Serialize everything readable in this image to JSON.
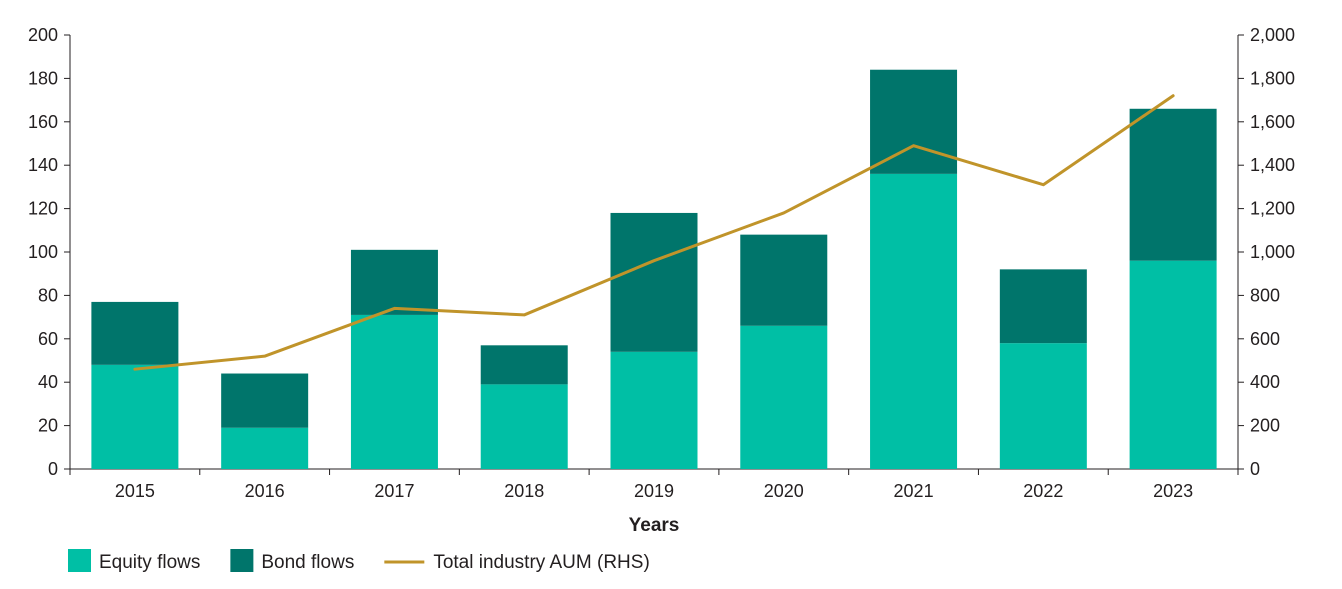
{
  "chart_data": {
    "type": "bar",
    "stacked": true,
    "categories": [
      "2015",
      "2016",
      "2017",
      "2018",
      "2019",
      "2020",
      "2021",
      "2022",
      "2023"
    ],
    "series": [
      {
        "name": "Equity flows",
        "type": "bar",
        "axis": "left",
        "color": "#00bfa5",
        "values": [
          48,
          19,
          71,
          39,
          54,
          66,
          136,
          58,
          96
        ]
      },
      {
        "name": "Bond flows",
        "type": "bar",
        "axis": "left",
        "color": "#00756b",
        "values": [
          29,
          25,
          30,
          18,
          64,
          42,
          48,
          34,
          70
        ]
      },
      {
        "name": "Total industry AUM (RHS)",
        "type": "line",
        "axis": "right",
        "color": "#c0942a",
        "values": [
          460,
          520,
          740,
          710,
          960,
          1180,
          1490,
          1310,
          1720
        ]
      }
    ],
    "xlabel": "Years",
    "ylabel": "",
    "ylim": [
      0,
      200
    ],
    "y2lim": [
      0,
      2000
    ],
    "y_ticks": [
      "0",
      "20",
      "40",
      "60",
      "80",
      "100",
      "120",
      "140",
      "160",
      "180",
      "200"
    ],
    "y2_ticks": [
      "0",
      "200",
      "400",
      "600",
      "800",
      "1,000",
      "1,200",
      "1,400",
      "1,600",
      "1,800",
      "2,000"
    ],
    "legend_position": "bottom-left",
    "grid": false
  }
}
